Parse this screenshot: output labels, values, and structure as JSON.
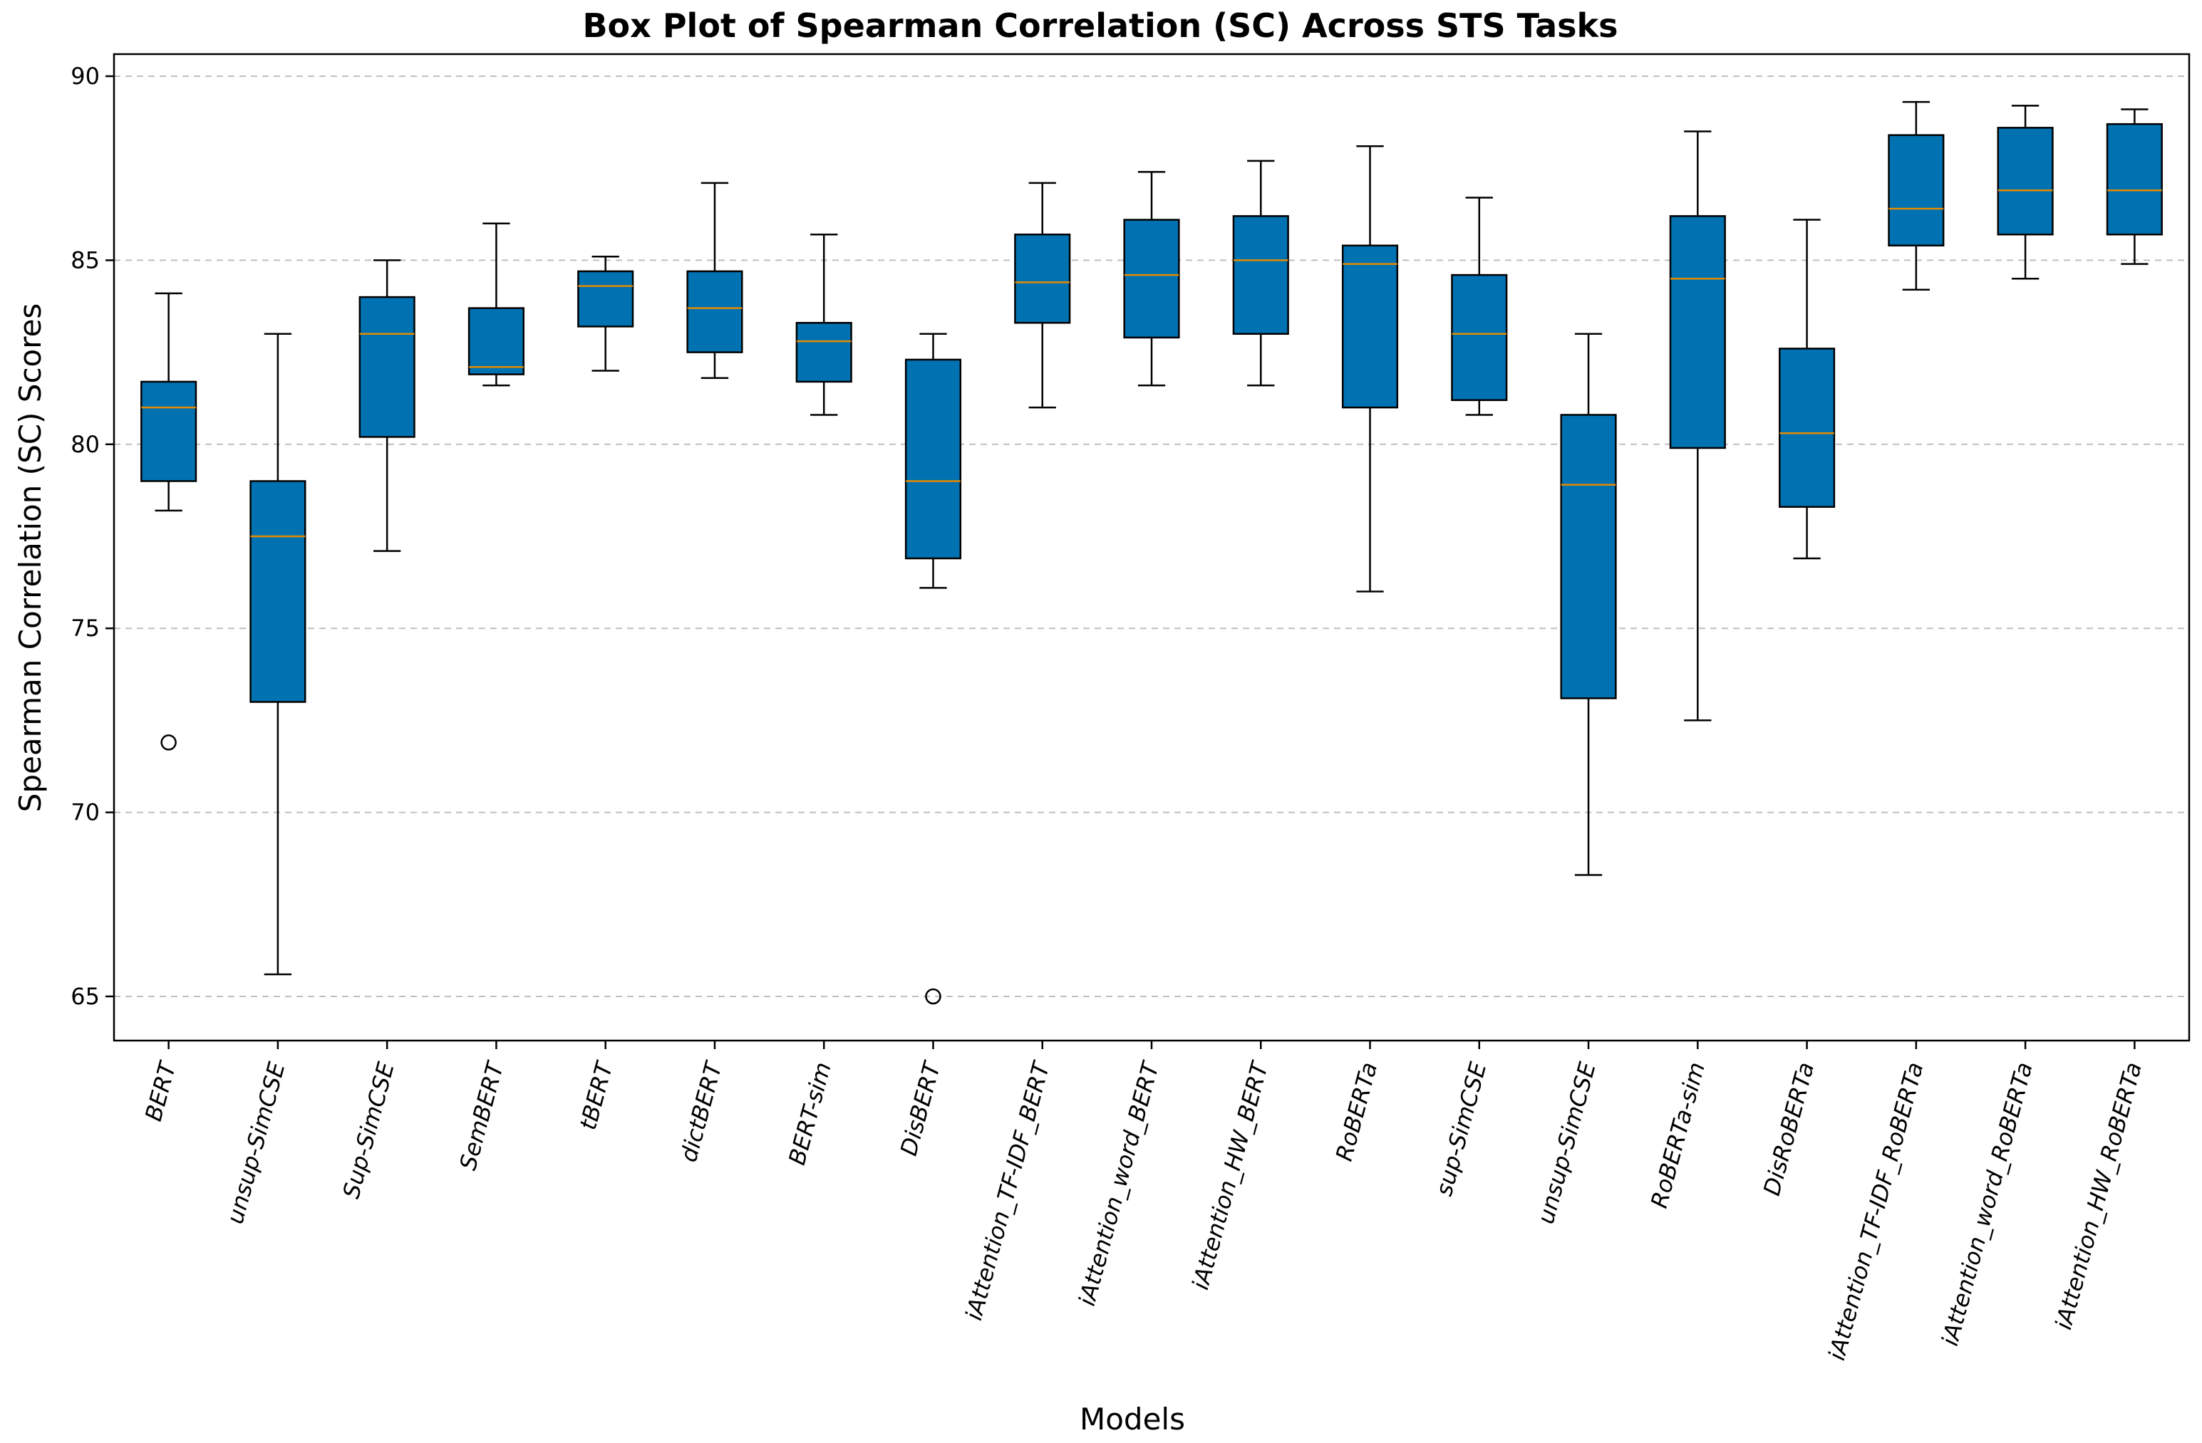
{
  "chart_data": {
    "type": "box",
    "title": "Box Plot of Spearman Correlation (SC) Across STS Tasks",
    "xlabel": "Models",
    "ylabel": "Spearman Correlation (SC) Scores",
    "ylim": [
      63.8,
      90.6
    ],
    "yticks": [
      65,
      70,
      75,
      80,
      85,
      90
    ],
    "grid": "horizontal-dashed",
    "colors": {
      "box_fill": "#0072b2",
      "box_edge": "#000000",
      "median": "#e68a00",
      "grid": "#bfbfbf"
    },
    "categories": [
      "BERT",
      "unsup-SimCSE",
      "Sup-SimCSE",
      "SemBERT",
      "tBERT",
      "dictBERT",
      "BERT-sim",
      "DisBERT",
      "iAttention_TF-IDF_BERT",
      "iAttention_word_BERT",
      "iAttention_HW_BERT",
      "RoBERTa",
      "sup-SimCSE",
      "unsup-SimCSE",
      "RoBERTa-sim",
      "DisRoBERTa",
      "iAttention_TF-IDF_RoBERTa",
      "iAttention_word_RoBERTa",
      "iAttention_HW_RoBERTa"
    ],
    "boxes": [
      {
        "whisker_low": 78.2,
        "q1": 79.0,
        "median": 81.0,
        "q3": 81.7,
        "whisker_high": 84.1,
        "outliers": [
          71.9
        ]
      },
      {
        "whisker_low": 65.6,
        "q1": 73.0,
        "median": 77.5,
        "q3": 79.0,
        "whisker_high": 83.0,
        "outliers": []
      },
      {
        "whisker_low": 77.1,
        "q1": 80.2,
        "median": 83.0,
        "q3": 84.0,
        "whisker_high": 85.0,
        "outliers": []
      },
      {
        "whisker_low": 81.6,
        "q1": 81.9,
        "median": 82.1,
        "q3": 83.7,
        "whisker_high": 86.0,
        "outliers": []
      },
      {
        "whisker_low": 82.0,
        "q1": 83.2,
        "median": 84.3,
        "q3": 84.7,
        "whisker_high": 85.1,
        "outliers": []
      },
      {
        "whisker_low": 81.8,
        "q1": 82.5,
        "median": 83.7,
        "q3": 84.7,
        "whisker_high": 87.1,
        "outliers": []
      },
      {
        "whisker_low": 80.8,
        "q1": 81.7,
        "median": 82.8,
        "q3": 83.3,
        "whisker_high": 85.7,
        "outliers": []
      },
      {
        "whisker_low": 76.1,
        "q1": 76.9,
        "median": 79.0,
        "q3": 82.3,
        "whisker_high": 83.0,
        "outliers": [
          65.0
        ]
      },
      {
        "whisker_low": 81.0,
        "q1": 83.3,
        "median": 84.4,
        "q3": 85.7,
        "whisker_high": 87.1,
        "outliers": []
      },
      {
        "whisker_low": 81.6,
        "q1": 82.9,
        "median": 84.6,
        "q3": 86.1,
        "whisker_high": 87.4,
        "outliers": []
      },
      {
        "whisker_low": 81.6,
        "q1": 83.0,
        "median": 85.0,
        "q3": 86.2,
        "whisker_high": 87.7,
        "outliers": []
      },
      {
        "whisker_low": 76.0,
        "q1": 81.0,
        "median": 84.9,
        "q3": 85.4,
        "whisker_high": 88.1,
        "outliers": []
      },
      {
        "whisker_low": 80.8,
        "q1": 81.2,
        "median": 83.0,
        "q3": 84.6,
        "whisker_high": 86.7,
        "outliers": []
      },
      {
        "whisker_low": 68.3,
        "q1": 73.1,
        "median": 78.9,
        "q3": 80.8,
        "whisker_high": 83.0,
        "outliers": []
      },
      {
        "whisker_low": 72.5,
        "q1": 79.9,
        "median": 84.5,
        "q3": 86.2,
        "whisker_high": 88.5,
        "outliers": []
      },
      {
        "whisker_low": 76.9,
        "q1": 78.3,
        "median": 80.3,
        "q3": 82.6,
        "whisker_high": 86.1,
        "outliers": []
      },
      {
        "whisker_low": 84.2,
        "q1": 85.4,
        "median": 86.4,
        "q3": 88.4,
        "whisker_high": 89.3,
        "outliers": []
      },
      {
        "whisker_low": 84.5,
        "q1": 85.7,
        "median": 86.9,
        "q3": 88.6,
        "whisker_high": 89.2,
        "outliers": []
      },
      {
        "whisker_low": 84.9,
        "q1": 85.7,
        "median": 86.9,
        "q3": 88.7,
        "whisker_high": 89.1,
        "outliers": []
      }
    ]
  }
}
